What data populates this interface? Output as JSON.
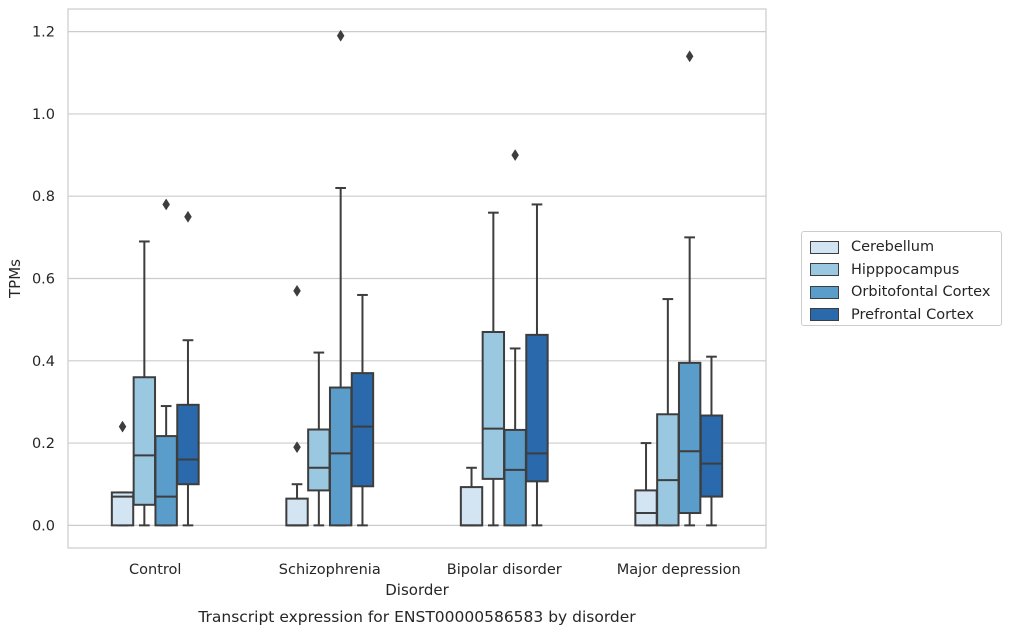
{
  "chart_data": {
    "type": "box",
    "title": "",
    "caption": "Transcript expression for ENST00000586583 by disorder",
    "xlabel": "Disorder",
    "ylabel": "TPMs",
    "ylim": [
      -0.055,
      1.255
    ],
    "yticks": [
      0.0,
      0.2,
      0.4,
      0.6,
      0.8,
      1.0,
      1.2
    ],
    "ytick_labels": [
      "0.0",
      "0.2",
      "0.4",
      "0.6",
      "0.8",
      "1.0",
      "1.2"
    ],
    "categories": [
      "Control",
      "Schizophrenia",
      "Bipolar disorder",
      "Major depression"
    ],
    "grid": true,
    "legend_position": "right",
    "series": [
      {
        "name": "Cerebellum",
        "color": "#d3e4f3",
        "boxes": [
          {
            "min": 0.0,
            "q1": 0.0,
            "median": 0.07,
            "q3": 0.08,
            "max": 0.08,
            "outliers": [
              0.24
            ]
          },
          {
            "min": 0.0,
            "q1": 0.0,
            "median": 0.0,
            "q3": 0.065,
            "max": 0.1,
            "outliers": [
              0.19,
              0.57
            ]
          },
          {
            "min": 0.0,
            "q1": 0.0,
            "median": 0.0,
            "q3": 0.093,
            "max": 0.14,
            "outliers": []
          },
          {
            "min": 0.0,
            "q1": 0.0,
            "median": 0.03,
            "q3": 0.085,
            "max": 0.2,
            "outliers": []
          }
        ]
      },
      {
        "name": "Hipppocampus",
        "color": "#9ac8e0",
        "boxes": [
          {
            "min": 0.0,
            "q1": 0.05,
            "median": 0.17,
            "q3": 0.36,
            "max": 0.69,
            "outliers": []
          },
          {
            "min": 0.0,
            "q1": 0.085,
            "median": 0.14,
            "q3": 0.233,
            "max": 0.42,
            "outliers": []
          },
          {
            "min": 0.0,
            "q1": 0.113,
            "median": 0.235,
            "q3": 0.47,
            "max": 0.76,
            "outliers": []
          },
          {
            "min": 0.0,
            "q1": 0.0,
            "median": 0.11,
            "q3": 0.27,
            "max": 0.55,
            "outliers": []
          }
        ]
      },
      {
        "name": "Orbitofontal Cortex",
        "color": "#5a9dca",
        "boxes": [
          {
            "min": 0.0,
            "q1": 0.0,
            "median": 0.07,
            "q3": 0.217,
            "max": 0.29,
            "outliers": [
              0.78
            ]
          },
          {
            "min": 0.0,
            "q1": 0.0,
            "median": 0.175,
            "q3": 0.335,
            "max": 0.82,
            "outliers": [
              1.19
            ]
          },
          {
            "min": 0.0,
            "q1": 0.0,
            "median": 0.135,
            "q3": 0.232,
            "max": 0.43,
            "outliers": [
              0.9
            ]
          },
          {
            "min": 0.0,
            "q1": 0.03,
            "median": 0.18,
            "q3": 0.395,
            "max": 0.7,
            "outliers": [
              1.14
            ]
          }
        ]
      },
      {
        "name": "Prefrontal Cortex",
        "color": "#2a6aac",
        "boxes": [
          {
            "min": 0.0,
            "q1": 0.1,
            "median": 0.16,
            "q3": 0.293,
            "max": 0.45,
            "outliers": [
              0.75
            ]
          },
          {
            "min": 0.0,
            "q1": 0.095,
            "median": 0.24,
            "q3": 0.37,
            "max": 0.56,
            "outliers": []
          },
          {
            "min": 0.0,
            "q1": 0.107,
            "median": 0.175,
            "q3": 0.463,
            "max": 0.78,
            "outliers": []
          },
          {
            "min": 0.0,
            "q1": 0.07,
            "median": 0.15,
            "q3": 0.267,
            "max": 0.41,
            "outliers": []
          }
        ]
      }
    ]
  }
}
